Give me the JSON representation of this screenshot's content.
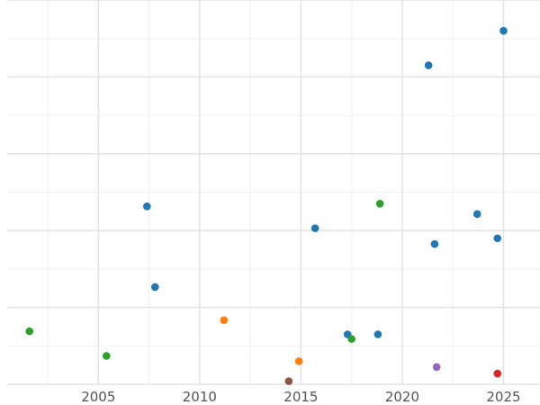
{
  "chart_data": {
    "type": "scatter",
    "title": "",
    "xlabel": "",
    "ylabel": "",
    "xlim": [
      2000.5,
      2026.8
    ],
    "ylim": [
      0,
      100
    ],
    "grid": true,
    "legend": "none",
    "y_tick_labels_visible": false,
    "x_ticks": [
      {
        "value": 2005,
        "label": "2005"
      },
      {
        "value": 2010,
        "label": "2010"
      },
      {
        "value": 2015,
        "label": "2015"
      },
      {
        "value": 2020,
        "label": "2020"
      },
      {
        "value": 2025,
        "label": "2025"
      }
    ],
    "x_minor_gridlines": [
      2002.5,
      2007.5,
      2012.5,
      2017.5,
      2022.5
    ],
    "y_gridlines": [
      0,
      20,
      40,
      60,
      80,
      100
    ],
    "y_minor_gridlines": [
      10,
      30,
      50,
      70,
      90
    ],
    "series": [
      {
        "color": "#1f77b4",
        "points": [
          {
            "x": 2007.4,
            "y": 46.3
          },
          {
            "x": 2007.8,
            "y": 25.3
          },
          {
            "x": 2015.7,
            "y": 40.6
          },
          {
            "x": 2017.3,
            "y": 13.0
          },
          {
            "x": 2018.8,
            "y": 13.0
          },
          {
            "x": 2021.3,
            "y": 83.0
          },
          {
            "x": 2021.6,
            "y": 36.5
          },
          {
            "x": 2023.7,
            "y": 44.3
          },
          {
            "x": 2024.7,
            "y": 38.0
          },
          {
            "x": 2025.0,
            "y": 92.0
          }
        ]
      },
      {
        "color": "#ff7f0e",
        "points": [
          {
            "x": 2011.2,
            "y": 16.7
          },
          {
            "x": 2014.9,
            "y": 6.0
          }
        ]
      },
      {
        "color": "#2ca02c",
        "points": [
          {
            "x": 2001.6,
            "y": 13.8
          },
          {
            "x": 2005.4,
            "y": 7.4
          },
          {
            "x": 2017.5,
            "y": 11.8
          },
          {
            "x": 2018.9,
            "y": 47.0
          }
        ]
      },
      {
        "color": "#d62728",
        "points": [
          {
            "x": 2024.7,
            "y": 2.8
          }
        ]
      },
      {
        "color": "#9467bd",
        "points": [
          {
            "x": 2021.7,
            "y": 4.5
          }
        ]
      },
      {
        "color": "#8c564b",
        "points": [
          {
            "x": 2014.4,
            "y": 0.8
          }
        ]
      }
    ]
  }
}
